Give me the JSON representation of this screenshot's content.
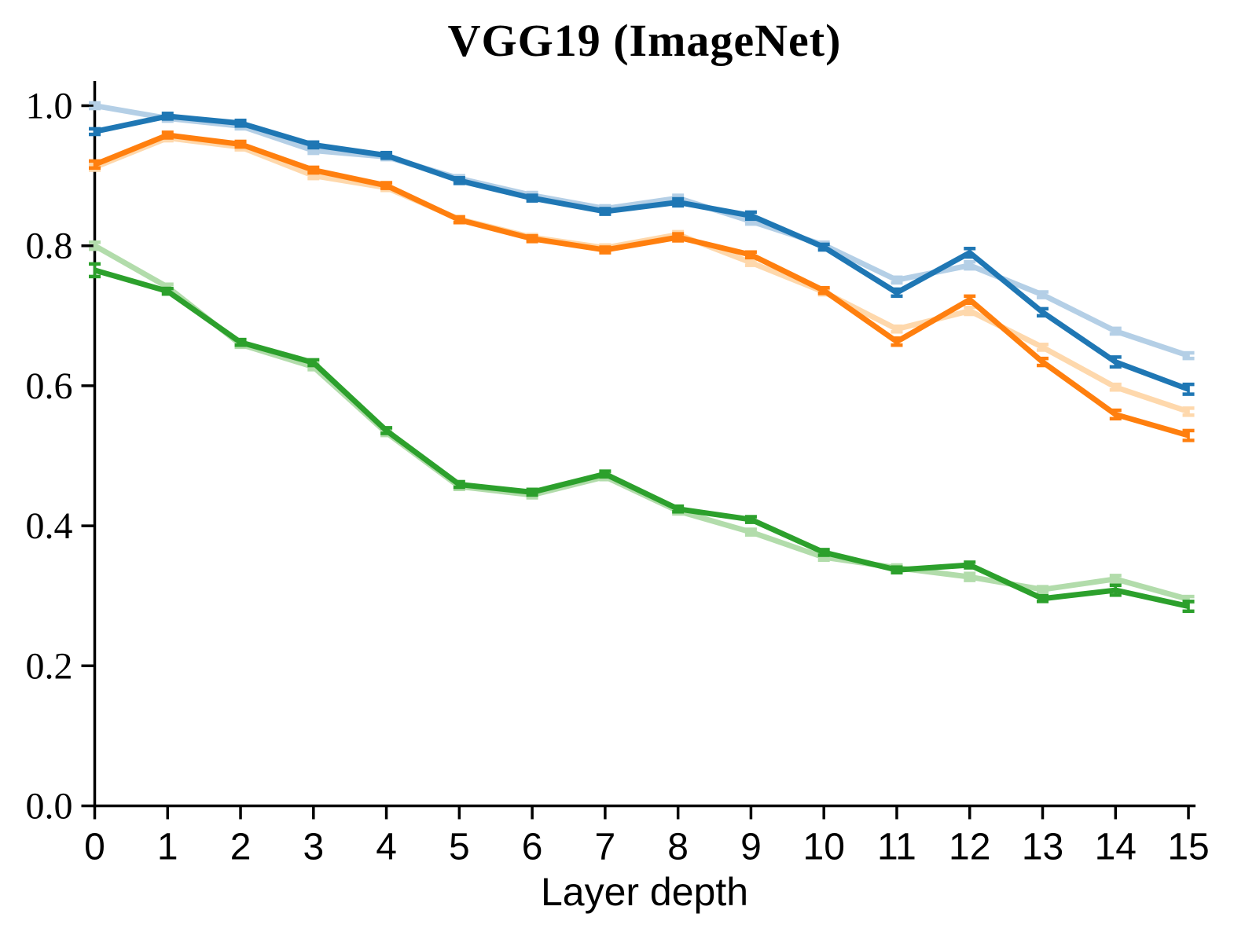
{
  "title": "VGG19 (ImageNet)",
  "chart_data": {
    "type": "line",
    "title": "VGG19 (ImageNet)",
    "xlabel": "Layer depth",
    "ylabel": "",
    "x": [
      0,
      1,
      2,
      3,
      4,
      5,
      6,
      7,
      8,
      9,
      10,
      11,
      12,
      13,
      14,
      15
    ],
    "x_tick_labels": [
      "0",
      "1",
      "2",
      "3",
      "4",
      "5",
      "6",
      "7",
      "8",
      "9",
      "10",
      "11",
      "12",
      "13",
      "14",
      "15"
    ],
    "yticks": [
      0.0,
      0.2,
      0.4,
      0.6,
      0.8,
      1.0
    ],
    "y_tick_labels": [
      "0.0",
      "0.2",
      "0.4",
      "0.6",
      "0.8",
      "1.0"
    ],
    "xlim": [
      0,
      15
    ],
    "ylim": [
      0.0,
      1.05
    ],
    "grid": false,
    "legend": "none",
    "marker_style": "errorbar-caps",
    "series": [
      {
        "name": "light-blue",
        "color": "#b4cfe6",
        "values": [
          1.0,
          0.982,
          0.971,
          0.936,
          0.927,
          0.896,
          0.872,
          0.853,
          0.868,
          0.835,
          0.801,
          0.751,
          0.772,
          0.73,
          0.678,
          0.643
        ],
        "errors": [
          0.004,
          0.004,
          0.004,
          0.004,
          0.004,
          0.004,
          0.004,
          0.004,
          0.004,
          0.004,
          0.004,
          0.004,
          0.005,
          0.004,
          0.004,
          0.004
        ]
      },
      {
        "name": "light-orange",
        "color": "#fed8ac",
        "values": [
          0.912,
          0.954,
          0.941,
          0.9,
          0.883,
          0.838,
          0.812,
          0.797,
          0.816,
          0.776,
          0.734,
          0.681,
          0.707,
          0.655,
          0.598,
          0.563
        ],
        "errors": [
          0.004,
          0.004,
          0.004,
          0.004,
          0.004,
          0.004,
          0.004,
          0.004,
          0.004,
          0.004,
          0.004,
          0.004,
          0.005,
          0.004,
          0.004,
          0.005
        ]
      },
      {
        "name": "light-green",
        "color": "#b2dcab",
        "values": [
          0.8,
          0.741,
          0.659,
          0.627,
          0.533,
          0.456,
          0.444,
          0.47,
          0.421,
          0.391,
          0.355,
          0.34,
          0.327,
          0.309,
          0.324,
          0.295
        ],
        "errors": [
          0.005,
          0.004,
          0.004,
          0.004,
          0.004,
          0.004,
          0.004,
          0.004,
          0.004,
          0.004,
          0.004,
          0.004,
          0.005,
          0.004,
          0.005,
          0.004
        ]
      },
      {
        "name": "dark-blue",
        "color": "#1f77b4",
        "values": [
          0.963,
          0.985,
          0.975,
          0.944,
          0.929,
          0.893,
          0.868,
          0.849,
          0.862,
          0.843,
          0.798,
          0.733,
          0.79,
          0.705,
          0.634,
          0.595
        ],
        "errors": [
          0.004,
          0.004,
          0.004,
          0.004,
          0.004,
          0.004,
          0.004,
          0.004,
          0.005,
          0.005,
          0.004,
          0.005,
          0.006,
          0.005,
          0.007,
          0.007
        ]
      },
      {
        "name": "dark-orange",
        "color": "#ff7f0e",
        "values": [
          0.916,
          0.958,
          0.945,
          0.908,
          0.886,
          0.837,
          0.81,
          0.794,
          0.812,
          0.787,
          0.736,
          0.663,
          0.723,
          0.634,
          0.559,
          0.529
        ],
        "errors": [
          0.005,
          0.004,
          0.004,
          0.004,
          0.004,
          0.004,
          0.004,
          0.004,
          0.005,
          0.004,
          0.004,
          0.005,
          0.005,
          0.005,
          0.006,
          0.007
        ]
      },
      {
        "name": "dark-green",
        "color": "#2ca02c",
        "values": [
          0.765,
          0.735,
          0.662,
          0.633,
          0.536,
          0.459,
          0.448,
          0.474,
          0.424,
          0.409,
          0.362,
          0.337,
          0.344,
          0.296,
          0.308,
          0.285
        ],
        "errors": [
          0.009,
          0.004,
          0.004,
          0.004,
          0.004,
          0.004,
          0.004,
          0.004,
          0.004,
          0.004,
          0.004,
          0.004,
          0.004,
          0.004,
          0.007,
          0.007
        ]
      }
    ]
  }
}
